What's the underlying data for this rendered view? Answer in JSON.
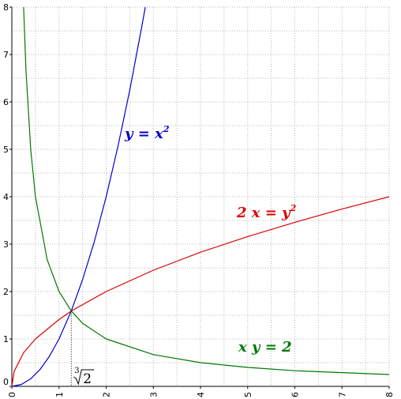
{
  "chart_data": {
    "type": "line",
    "title": "",
    "xlabel": "",
    "ylabel": "",
    "xlim": [
      0,
      8
    ],
    "ylim": [
      0,
      8
    ],
    "grid": true,
    "x_ticks": [
      "0",
      "1",
      "2",
      "3",
      "4",
      "5",
      "6",
      "7",
      "8"
    ],
    "y_ticks": [
      "0",
      "1",
      "2",
      "3",
      "4",
      "5",
      "6",
      "7",
      "8"
    ],
    "series": [
      {
        "name": "y = x²",
        "equation": {
          "lhs": "y",
          "rhs_base": "x",
          "rhs_exp": "2"
        },
        "color": "#0000cc",
        "x": [
          0,
          0.2,
          0.4,
          0.6,
          0.8,
          1.0,
          1.26,
          1.5,
          1.75,
          2.0,
          2.25,
          2.5,
          2.75,
          2.83
        ],
        "y": [
          0,
          0.04,
          0.16,
          0.36,
          0.64,
          1.0,
          1.59,
          2.25,
          3.06,
          4.0,
          5.06,
          6.25,
          7.56,
          8.0
        ]
      },
      {
        "name": "2 x = y²",
        "equation": {
          "lhs": "2 x",
          "rhs_base": "y",
          "rhs_exp": "2"
        },
        "color": "#dd0000",
        "x": [
          0,
          0.05,
          0.25,
          0.5,
          1.0,
          1.26,
          2.0,
          3.0,
          4.0,
          5.0,
          6.0,
          7.0,
          8.0
        ],
        "y": [
          0,
          0.32,
          0.71,
          1.0,
          1.41,
          1.59,
          2.0,
          2.45,
          2.83,
          3.16,
          3.46,
          3.74,
          4.0
        ]
      },
      {
        "name": "x y = 2",
        "equation": {
          "text": "x y = 2"
        },
        "color": "#007700",
        "x": [
          0.25,
          0.3,
          0.4,
          0.5,
          0.75,
          1.0,
          1.26,
          1.5,
          2.0,
          3.0,
          4.0,
          5.0,
          6.0,
          7.0,
          8.0
        ],
        "y": [
          8.0,
          6.67,
          5.0,
          4.0,
          2.67,
          2.0,
          1.59,
          1.33,
          1.0,
          0.67,
          0.5,
          0.4,
          0.33,
          0.29,
          0.25
        ]
      }
    ],
    "annotations": {
      "intersection": {
        "x": 1.26,
        "y": 1.587
      },
      "cbrt_label": {
        "index": "3",
        "radicand": "2"
      }
    }
  }
}
